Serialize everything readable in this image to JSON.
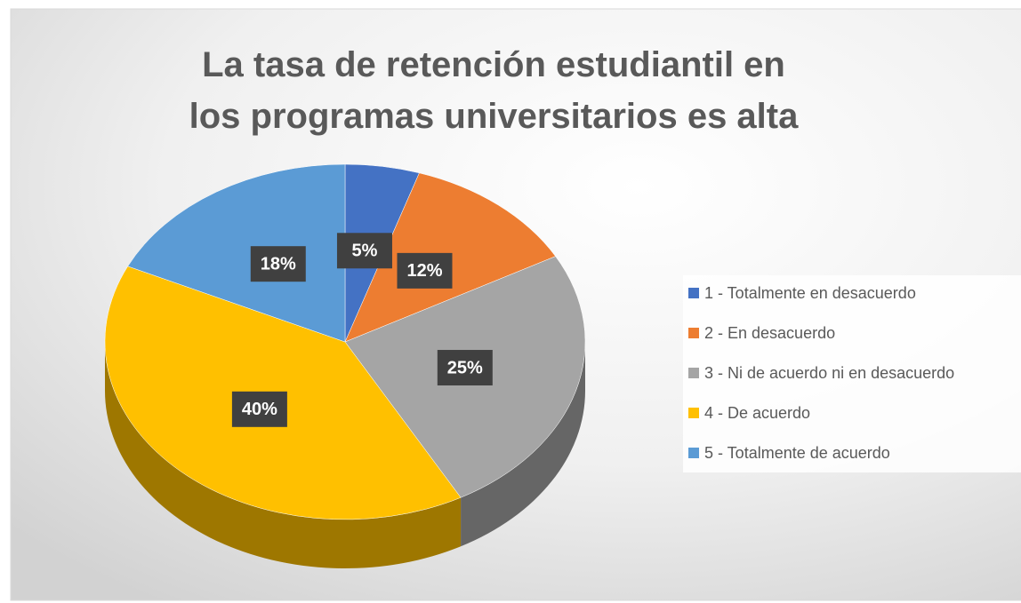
{
  "chart_data": {
    "type": "pie",
    "title": "La tasa de retención estudiantil en los programas universitarios es alta",
    "categories": [
      "1 - Totalmente en desacuerdo",
      "2 - En desacuerdo",
      "3 - Ni de acuerdo ni en desacuerdo",
      "4 - De acuerdo",
      "5 - Totalmente de acuerdo"
    ],
    "values": [
      5,
      12,
      25,
      40,
      18
    ],
    "value_labels": [
      "5%",
      "12%",
      "25%",
      "40%",
      "18%"
    ],
    "colors": [
      "#4472c4",
      "#ed7d31",
      "#a5a5a5",
      "#ffc000",
      "#5b9bd5"
    ],
    "legend": "right"
  }
}
